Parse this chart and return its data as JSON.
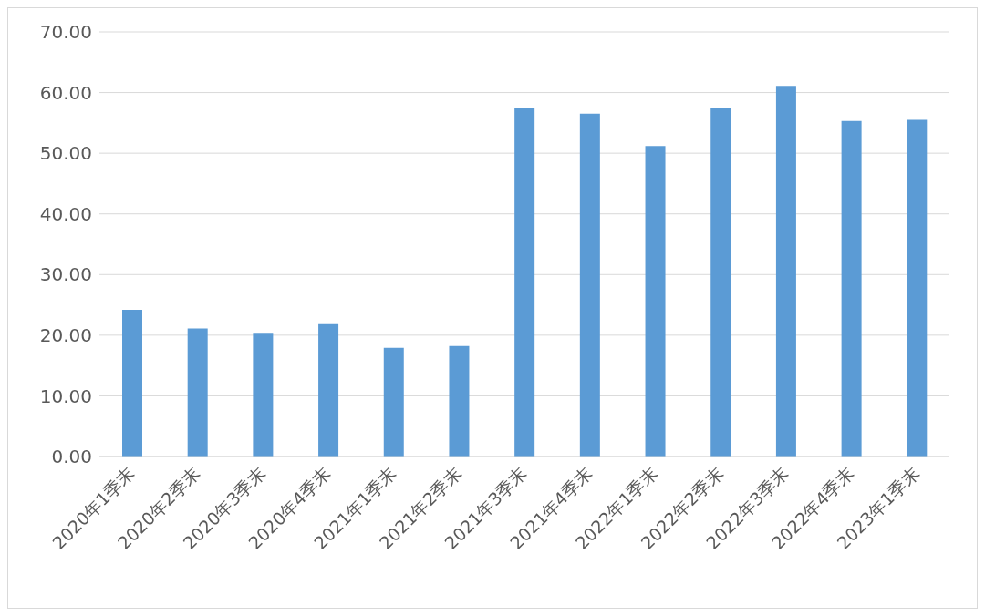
{
  "chart_data": {
    "type": "bar",
    "categories": [
      "2020年1季末",
      "2020年2季末",
      "2020年3季末",
      "2020年4季末",
      "2021年1季末",
      "2021年2季末",
      "2021年3季末",
      "2021年4季末",
      "2022年1季末",
      "2022年2季末",
      "2022年3季末",
      "2022年4季末",
      "2023年1季末"
    ],
    "values": [
      24.2,
      21.1,
      20.4,
      21.8,
      17.9,
      18.2,
      57.4,
      56.5,
      51.2,
      57.4,
      61.1,
      55.3,
      55.5
    ],
    "color": "#5b9bd5",
    "ylim": [
      0,
      70
    ],
    "yticks": [
      {
        "value": 0,
        "label": "0.00"
      },
      {
        "value": 10,
        "label": "10.00"
      },
      {
        "value": 20,
        "label": "20.00"
      },
      {
        "value": 30,
        "label": "30.00"
      },
      {
        "value": 40,
        "label": "40.00"
      },
      {
        "value": 50,
        "label": "50.00"
      },
      {
        "value": 60,
        "label": "60.00"
      },
      {
        "value": 70,
        "label": "70.00"
      }
    ],
    "grid": "y",
    "legend": false
  }
}
